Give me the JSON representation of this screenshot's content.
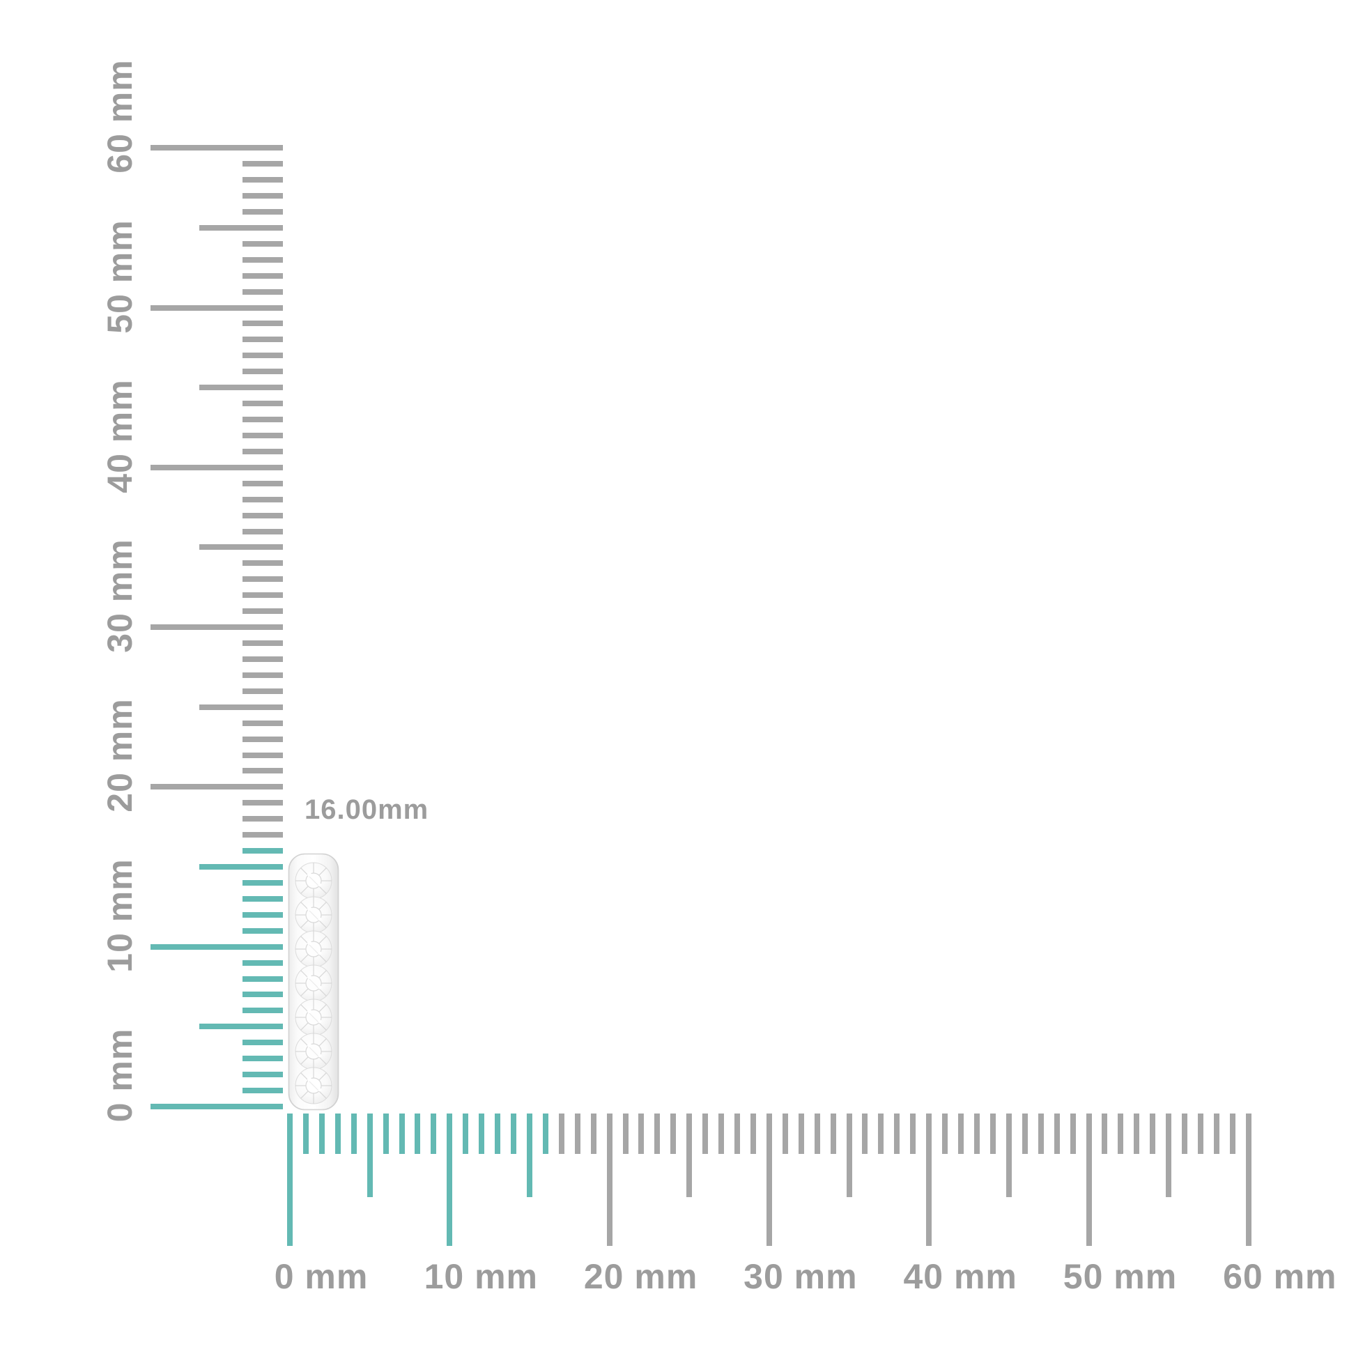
{
  "measurement": {
    "label": "16.00mm",
    "value_mm": 16
  },
  "rulers": {
    "unit": "mm",
    "min_mm": 0,
    "max_mm": 60,
    "minor_step_mm": 1,
    "medium_step_mm": 5,
    "major_step_mm": 10,
    "highlight_until_mm": 16,
    "vertical_labels": [
      "0 mm",
      "10 mm",
      "20 mm",
      "30 mm",
      "40 mm",
      "50 mm",
      "60 mm"
    ],
    "horizontal_labels": [
      "0 mm",
      "10 mm",
      "20 mm",
      "30 mm",
      "40 mm",
      "50 mm",
      "60 mm"
    ]
  },
  "colors": {
    "tick_gray": "#a6a6a6",
    "highlight_teal": "#63b9b3",
    "label_gray": "#9c9c9c",
    "metal_edge": "#c9c9c9",
    "stone_facet": "#d2d2d2"
  },
  "item": {
    "name": "diamond pave hoop earring, side view",
    "height_mm": 16,
    "stone_count": 7
  }
}
